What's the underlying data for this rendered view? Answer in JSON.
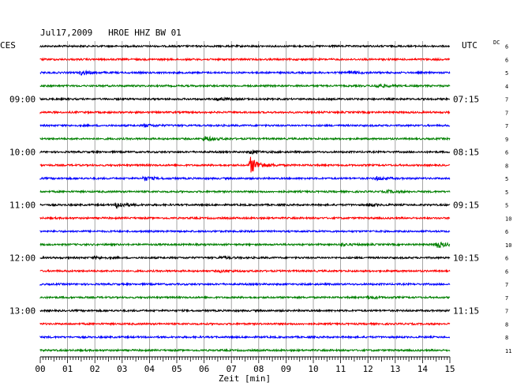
{
  "chart_data": {
    "type": "line",
    "title": "Jul17,2009   HROE HHZ BW 01",
    "left_axis_label": "CES",
    "right_axis_label": "UTC",
    "dc_label": "DC",
    "xlabel": "Zeit [min]",
    "xlim": [
      0,
      15
    ],
    "x_ticks": [
      "00",
      "01",
      "02",
      "03",
      "04",
      "05",
      "06",
      "07",
      "08",
      "09",
      "10",
      "11",
      "12",
      "13",
      "14",
      "15"
    ],
    "trace_count": 24,
    "trace_colors": [
      "#000000",
      "#ff0000",
      "#0000ff",
      "#008000"
    ],
    "left_time_labels": [
      {
        "trace": 4,
        "label": "09:00"
      },
      {
        "trace": 8,
        "label": "10:00"
      },
      {
        "trace": 12,
        "label": "11:00"
      },
      {
        "trace": 16,
        "label": "12:00"
      },
      {
        "trace": 20,
        "label": "13:00"
      }
    ],
    "right_time_labels": [
      {
        "trace": 4,
        "label": "07:15"
      },
      {
        "trace": 8,
        "label": "08:15"
      },
      {
        "trace": 12,
        "label": "09:15"
      },
      {
        "trace": 16,
        "label": "10:15"
      },
      {
        "trace": 20,
        "label": "11:15"
      }
    ],
    "dc_values": [
      "6",
      "6",
      "5",
      "4",
      "7",
      "7",
      "7",
      "9",
      "6",
      "8",
      "5",
      "5",
      "5",
      "10",
      "6",
      "10",
      "6",
      "6",
      "7",
      "7",
      "7",
      "8",
      "8",
      "11"
    ],
    "events": [
      {
        "trace": 2,
        "minute": 1.5,
        "amp": 2.5
      },
      {
        "trace": 2,
        "minute": 11.3,
        "amp": 1.8
      },
      {
        "trace": 3,
        "minute": 12.3,
        "amp": 2.5
      },
      {
        "trace": 4,
        "minute": 6.5,
        "amp": 2.0
      },
      {
        "trace": 6,
        "minute": 3.8,
        "amp": 1.6
      },
      {
        "trace": 7,
        "minute": 6.0,
        "amp": 3.0
      },
      {
        "trace": 8,
        "minute": 7.7,
        "amp": 2.0
      },
      {
        "trace": 9,
        "minute": 7.7,
        "amp": 10.0
      },
      {
        "trace": 10,
        "minute": 3.8,
        "amp": 2.5
      },
      {
        "trace": 10,
        "minute": 12.3,
        "amp": 2.2
      },
      {
        "trace": 11,
        "minute": 12.7,
        "amp": 1.6
      },
      {
        "trace": 12,
        "minute": 2.8,
        "amp": 4.0
      },
      {
        "trace": 12,
        "minute": 12.0,
        "amp": 1.6
      },
      {
        "trace": 15,
        "minute": 11.0,
        "amp": 1.6
      },
      {
        "trace": 15,
        "minute": 14.5,
        "amp": 4.0
      },
      {
        "trace": 16,
        "minute": 2.0,
        "amp": 1.4
      },
      {
        "trace": 16,
        "minute": 6.6,
        "amp": 1.4
      },
      {
        "trace": 17,
        "minute": 6.6,
        "amp": 1.3
      },
      {
        "trace": 19,
        "minute": 12.0,
        "amp": 1.8
      }
    ]
  }
}
